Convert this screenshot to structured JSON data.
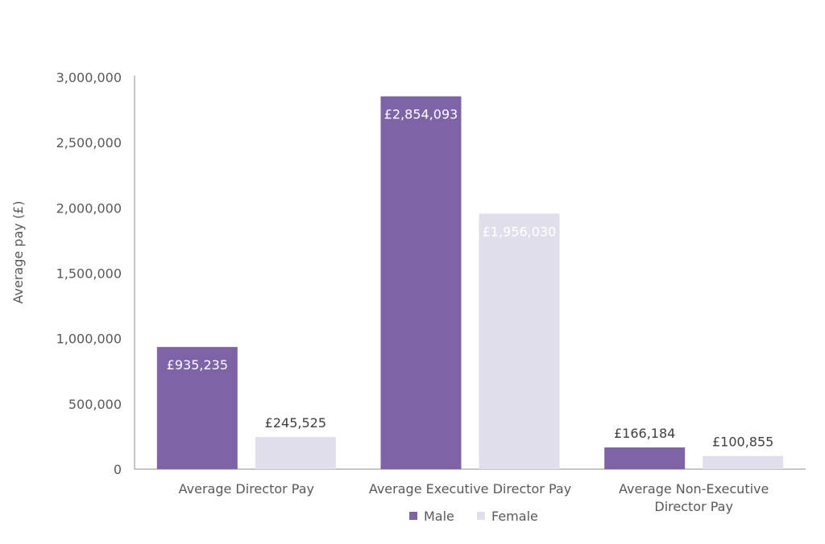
{
  "chart_data": {
    "type": "bar",
    "title": "",
    "xlabel": "",
    "ylabel": "Average pay (£)",
    "ylim": [
      0,
      3000000
    ],
    "yticks": [
      0,
      500000,
      1000000,
      1500000,
      2000000,
      2500000,
      3000000
    ],
    "ytick_labels": [
      "0",
      "500,000",
      "1,000,000",
      "1,500,000",
      "2,000,000",
      "2,500,000",
      "3,000,000"
    ],
    "categories": [
      [
        "Average Director Pay"
      ],
      [
        "Average Executive Director Pay"
      ],
      [
        "Average Non-Executive",
        "Director Pay"
      ]
    ],
    "series": [
      {
        "name": "Male",
        "color": "#7e64a7",
        "values": [
          935235,
          2854093,
          166184
        ],
        "labels": [
          "£935,235",
          "£2,854,093",
          "£166,184"
        ]
      },
      {
        "name": "Female",
        "color": "#e1dfec",
        "values": [
          245525,
          1956030,
          100855
        ],
        "labels": [
          "£245,525",
          "£1,956,030",
          "£100,855"
        ]
      }
    ],
    "grid": false,
    "legend_position": "bottom"
  }
}
